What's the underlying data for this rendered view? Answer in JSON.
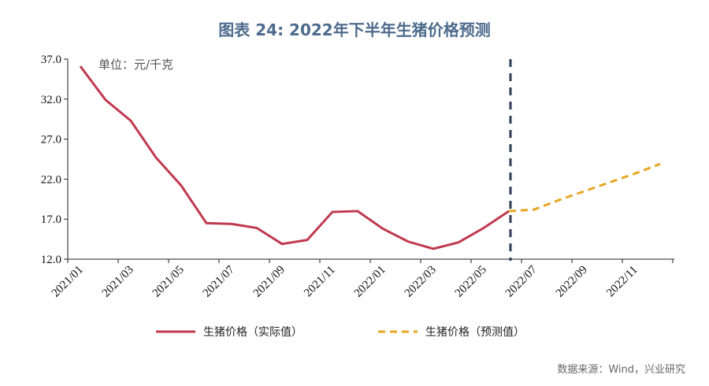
{
  "title": "图表 24: 2022年下半年生猪价格预测",
  "source": "数据来源：Wind，兴业研究",
  "chart_data": {
    "type": "line",
    "title": "图表 24: 2022年下半年生猪价格预测",
    "unit_label": "单位：元/千克",
    "ylim": [
      12,
      37
    ],
    "yticks": [
      "12.0",
      "17.0",
      "22.0",
      "27.0",
      "32.0",
      "37.0"
    ],
    "xticks": [
      "2021/01",
      "2021/03",
      "2021/05",
      "2021/07",
      "2021/09",
      "2021/11",
      "2022/01",
      "2022/03",
      "2022/05",
      "2022/07",
      "2022/09",
      "2022/11"
    ],
    "x": [
      "2021/01",
      "2021/02",
      "2021/03",
      "2021/04",
      "2021/05",
      "2021/06",
      "2021/07",
      "2021/08",
      "2021/09",
      "2021/10",
      "2021/11",
      "2021/12",
      "2022/01",
      "2022/02",
      "2022/03",
      "2022/04",
      "2022/05",
      "2022/06",
      "2022/07",
      "2022/08",
      "2022/09",
      "2022/10",
      "2022/11",
      "2022/12"
    ],
    "grid": false,
    "legend_position": "bottom",
    "divider_at": "2022/06",
    "series": [
      {
        "name": "生猪价格（实际值）",
        "color": "#c0394f",
        "style": "solid",
        "values": [
          36.1,
          31.9,
          29.3,
          24.7,
          21.2,
          16.5,
          16.4,
          15.9,
          13.9,
          14.4,
          17.9,
          18.0,
          15.8,
          14.2,
          13.3,
          14.1,
          15.9,
          18.0,
          null,
          null,
          null,
          null,
          null,
          null
        ]
      },
      {
        "name": "生猪价格（预测值）",
        "color": "#e8a624",
        "style": "dashed",
        "values": [
          null,
          null,
          null,
          null,
          null,
          null,
          null,
          null,
          null,
          null,
          null,
          null,
          null,
          null,
          null,
          null,
          null,
          18.0,
          18.2,
          19.4,
          20.5,
          21.6,
          22.7,
          23.9
        ]
      }
    ],
    "divider_color": "#2f3e55"
  }
}
